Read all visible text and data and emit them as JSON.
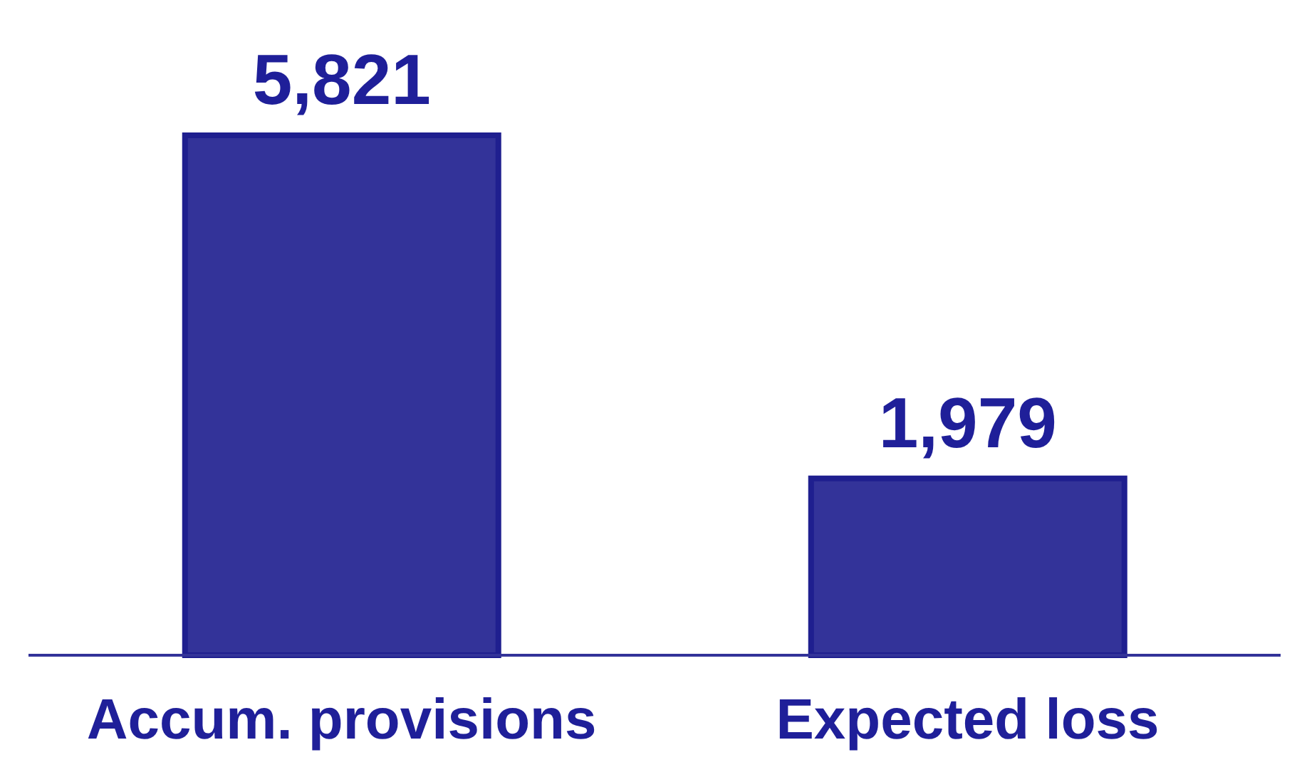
{
  "chart_data": {
    "type": "bar",
    "categories": [
      "Accum. provisions",
      "Expected loss"
    ],
    "values": [
      5821,
      1979
    ],
    "color": "#333399",
    "value_labels": [
      "5,821",
      "1,979"
    ]
  }
}
